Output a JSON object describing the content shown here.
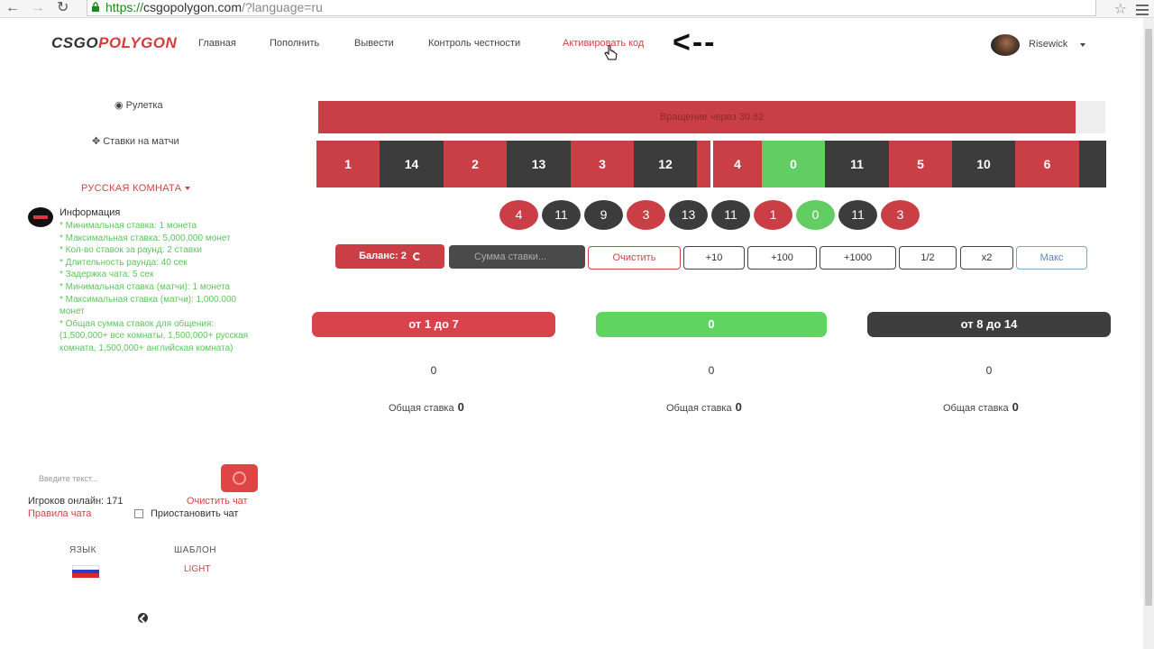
{
  "browser": {
    "url_scheme": "https://",
    "url_rest_dark": "csgopolygon.com",
    "url_rest": "/?language=ru"
  },
  "header": {
    "logo_a": "CSGO",
    "logo_b": "POLYGON",
    "nav": [
      "Главная",
      "Пополнить",
      "Вывести",
      "Контроль честности",
      "Активировать код"
    ],
    "annotation": "<--",
    "username": "Risewick"
  },
  "sidebar": {
    "roulette": "Рулетка",
    "match_bets": "Ставки на матчи",
    "room": "РУССКАЯ КОМНАТА",
    "info_title": "Информация",
    "info_lines": [
      "* Минимальная ставка: 1 монета",
      "* Максимальная ставка: 5,000,000 монет",
      "* Кол-во ставок за раунд: 2 ставки",
      "* Длительность раунда: 40 сек",
      "* Задержка чата: 5 сек",
      "* Минимальная ставка (матчи): 1 монета",
      "* Максимальная ставка (матчи): 1,000,000 монет",
      "* Общая сумма ставок для общения: (1,500,000+ все комнаты, 1,500,000+ русская комната, 1,500,000+ английская комната)"
    ],
    "chat_placeholder": "Введите текст...",
    "players_online": "Игроков онлайн: 171",
    "clear_chat": "Очистить чат",
    "chat_rules": "Правила чата",
    "pause_chat": "Приостановить чат",
    "language_head": "ЯЗЫК",
    "template_head": "ШАБЛОН",
    "template_value": "LIGHT"
  },
  "progress": {
    "text": "Вращение через 30.82",
    "fraction": 0.962
  },
  "strip": [
    {
      "n": "1",
      "c": "red"
    },
    {
      "n": "14",
      "c": "black"
    },
    {
      "n": "2",
      "c": "red"
    },
    {
      "n": "13",
      "c": "black"
    },
    {
      "n": "3",
      "c": "red"
    },
    {
      "n": "12",
      "c": "black"
    },
    {
      "n": "",
      "c": "red"
    },
    {
      "n": "4",
      "c": "red"
    },
    {
      "n": "0",
      "c": "green"
    },
    {
      "n": "11",
      "c": "black"
    },
    {
      "n": "5",
      "c": "red"
    },
    {
      "n": "10",
      "c": "black"
    },
    {
      "n": "6",
      "c": "red"
    },
    {
      "n": "",
      "c": "black"
    }
  ],
  "history": [
    {
      "n": "4",
      "c": "red"
    },
    {
      "n": "11",
      "c": "black"
    },
    {
      "n": "9",
      "c": "black"
    },
    {
      "n": "3",
      "c": "red"
    },
    {
      "n": "13",
      "c": "black"
    },
    {
      "n": "11",
      "c": "black"
    },
    {
      "n": "1",
      "c": "red"
    },
    {
      "n": "0",
      "c": "green"
    },
    {
      "n": "11",
      "c": "black"
    },
    {
      "n": "3",
      "c": "red"
    }
  ],
  "controls": {
    "balance": "Баланс: 2",
    "bet_placeholder": "Сумма ставки...",
    "clear": "Очистить",
    "plus10": "+10",
    "plus100": "+100",
    "plus1000": "+1000",
    "half": "1/2",
    "double": "x2",
    "max": "Макс"
  },
  "bets": {
    "red_label": "от 1 до 7",
    "green_label": "0",
    "black_label": "от 8 до 14",
    "red_count": "0",
    "green_count": "0",
    "black_count": "0",
    "total_label": "Общая ставка",
    "red_total": "0",
    "green_total": "0",
    "black_total": "0"
  },
  "colors": {
    "red": "#c93f45",
    "black": "#3c3c3c",
    "green": "#62cd62",
    "info_green": "#5cc65c"
  }
}
